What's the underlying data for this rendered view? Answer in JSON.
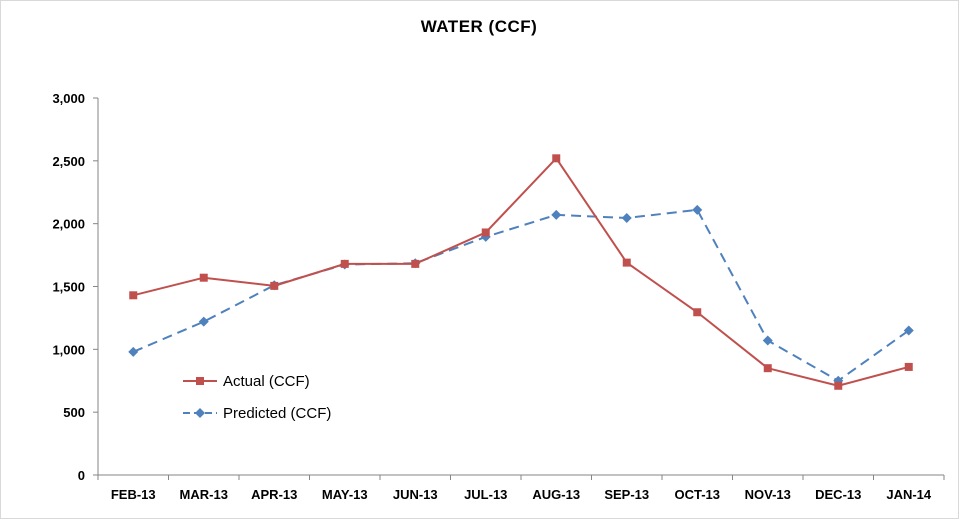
{
  "chart_data": {
    "type": "line",
    "title": "WATER (CCF)",
    "xlabel": "",
    "ylabel": "",
    "categories": [
      "FEB-13",
      "MAR-13",
      "APR-13",
      "MAY-13",
      "JUN-13",
      "JUL-13",
      "AUG-13",
      "SEP-13",
      "OCT-13",
      "NOV-13",
      "DEC-13",
      "JAN-14"
    ],
    "ylim": [
      0,
      3000
    ],
    "yticks": [
      0,
      500,
      1000,
      1500,
      2000,
      2500,
      3000
    ],
    "ytick_labels": [
      "0",
      "500",
      "1,000",
      "1,500",
      "2,000",
      "2,500",
      "3,000"
    ],
    "grid": false,
    "legend_position": "lower-left",
    "series": [
      {
        "name": "Actual (CCF)",
        "color": "#C0504D",
        "marker": "square",
        "dash": "solid",
        "values": [
          1430,
          1570,
          1505,
          1680,
          1680,
          1930,
          2520,
          1690,
          1295,
          850,
          710,
          860
        ]
      },
      {
        "name": "Predicted (CCF)",
        "color": "#4F81BD",
        "marker": "diamond",
        "dash": "dashed",
        "values": [
          980,
          1220,
          1510,
          1675,
          1685,
          1895,
          2070,
          2045,
          2110,
          1070,
          750,
          1150
        ]
      }
    ]
  }
}
